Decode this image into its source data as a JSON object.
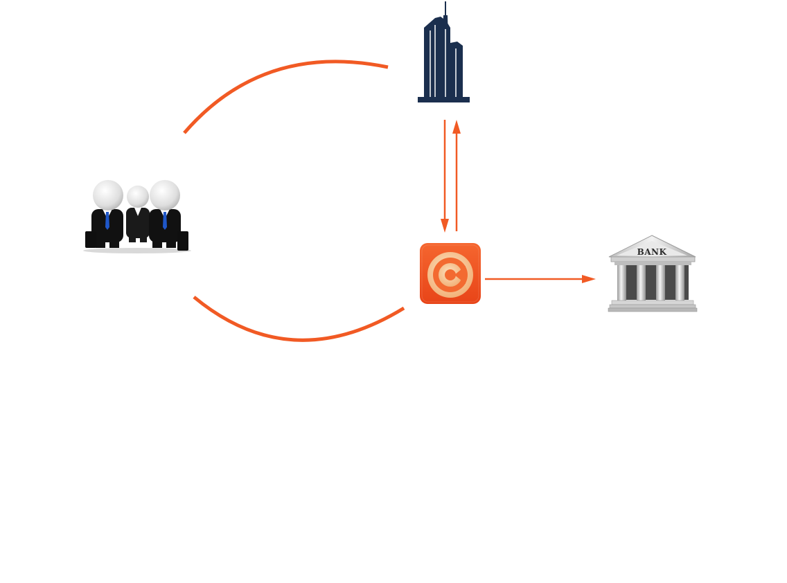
{
  "diagram": {
    "accent_color": "#f15a24",
    "building_color": "#1b2f4e",
    "nodes": {
      "people": {
        "icon": "business-people-icon"
      },
      "company": {
        "icon": "office-building-icon"
      },
      "app": {
        "icon": "payment-app-logo-icon"
      },
      "bank": {
        "icon": "bank-building-icon",
        "label": "BANK"
      }
    },
    "edges": [
      {
        "from": "app",
        "to": "people",
        "style": "arc",
        "arrowheads": false
      },
      {
        "from": "company",
        "to": "app",
        "style": "arrow"
      },
      {
        "from": "app",
        "to": "company",
        "style": "arrow"
      },
      {
        "from": "app",
        "to": "bank",
        "style": "arrow"
      }
    ]
  }
}
